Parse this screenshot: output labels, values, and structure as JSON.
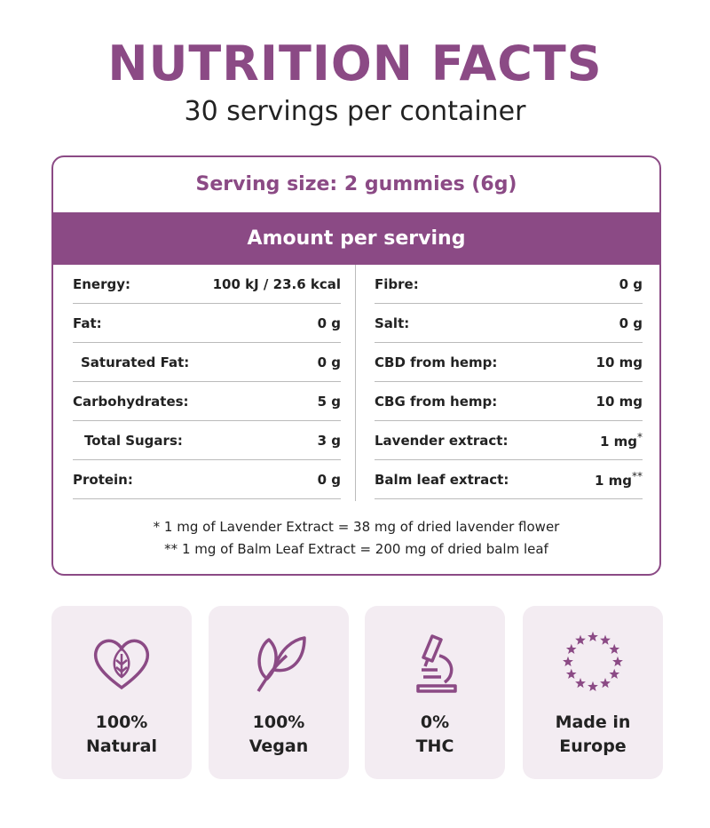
{
  "header": {
    "title": "NUTRITION FACTS",
    "subtitle": "30 servings per container"
  },
  "table": {
    "serving": "Serving size: 2 gummies (6g)",
    "amount_header": "Amount per serving",
    "left": [
      {
        "label": "Energy:",
        "value": "100 kJ / 23.6 kcal"
      },
      {
        "label": "Fat:",
        "value": "0 g"
      },
      {
        "label": "Saturated Fat:",
        "value": "0 g",
        "indent": true
      },
      {
        "label": "Carbohydrates:",
        "value": "5 g"
      },
      {
        "label": "Total Sugars:",
        "value": "3 g",
        "indent": true
      },
      {
        "label": "Protein:",
        "value": "0 g"
      }
    ],
    "right": [
      {
        "label": "Fibre:",
        "value": "0 g"
      },
      {
        "label": "Salt:",
        "value": "0 g"
      },
      {
        "label": "CBD from hemp:",
        "value": "10 mg"
      },
      {
        "label": "CBG from hemp:",
        "value": "10 mg"
      },
      {
        "label": "Lavender extract:",
        "value": "1 mg",
        "note": "*"
      },
      {
        "label": "Balm leaf extract:",
        "value": "1 mg",
        "note": "**"
      }
    ],
    "footnotes": [
      "* 1 mg of Lavender Extract = 38 mg of dried lavender flower",
      "** 1 mg of Balm Leaf Extract = 200 mg of dried balm leaf"
    ]
  },
  "badges": [
    {
      "line1": "100%",
      "line2": "Natural"
    },
    {
      "line1": "100%",
      "line2": "Vegan"
    },
    {
      "line1": "0%",
      "line2": "THC"
    },
    {
      "line1": "Made in",
      "line2": "Europe"
    }
  ]
}
